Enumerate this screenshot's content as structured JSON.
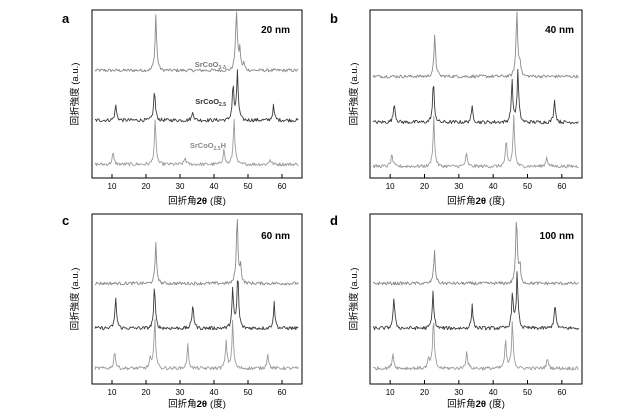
{
  "figure": {
    "background": "#ffffff",
    "series_colors": {
      "SrCoO3-δ": "#8a8a8a",
      "SrCoO2.5": "#3c3c3c",
      "SrCoO2.5H": "#9b9b9b"
    }
  },
  "chart_data": [
    {
      "type": "line",
      "panel": "a",
      "thickness_label": "20 nm",
      "xlabel_prefix": "回折角",
      "xlabel_symbol": "2θ",
      "xlabel_suffix": "(度)",
      "ylabel": "回折強度 (a.u.)",
      "xlim": [
        5,
        65
      ],
      "xticks": [
        10,
        20,
        30,
        40,
        50,
        60
      ],
      "tick_labels": [
        "10",
        "20",
        "30",
        "40",
        "50",
        "60"
      ],
      "stacked": true,
      "grid": false,
      "series": [
        {
          "name": "SrCoO3-δ",
          "label_main": "SrCoO",
          "label_sub": "3-δ",
          "label_tail": "",
          "color": "#8a8a8a",
          "peaks": [
            {
              "x": 22.9,
              "h": 0.82
            },
            {
              "x": 46.6,
              "h": 1.0
            },
            {
              "x": 47.6,
              "h": 0.28
            },
            {
              "x": 48.8,
              "h": 0.1
            }
          ]
        },
        {
          "name": "SrCoO2.5",
          "label_main": "SrCoO",
          "label_sub": "2.5",
          "label_tail": "",
          "color": "#3c3c3c",
          "peaks": [
            {
              "x": 11.1,
              "h": 0.3
            },
            {
              "x": 22.5,
              "h": 0.6
            },
            {
              "x": 33.8,
              "h": 0.18
            },
            {
              "x": 45.6,
              "h": 0.7
            },
            {
              "x": 46.9,
              "h": 0.95
            },
            {
              "x": 57.5,
              "h": 0.28
            }
          ]
        },
        {
          "name": "SrCoO2.5H",
          "label_main": "SrCoO",
          "label_sub": "2.5",
          "label_tail": "H",
          "color": "#9b9b9b",
          "peaks": [
            {
              "x": 10.3,
              "h": 0.25
            },
            {
              "x": 22.7,
              "h": 0.95
            },
            {
              "x": 31.5,
              "h": 0.15
            },
            {
              "x": 42.9,
              "h": 0.35
            },
            {
              "x": 45.9,
              "h": 1.0
            },
            {
              "x": 56.5,
              "h": 0.12
            }
          ]
        }
      ]
    },
    {
      "type": "line",
      "panel": "b",
      "thickness_label": "40 nm",
      "xlabel_prefix": "回折角",
      "xlabel_symbol": "2θ",
      "xlabel_suffix": "(度)",
      "ylabel": "回折強度 (a.u.)",
      "xlim": [
        5,
        65
      ],
      "xticks": [
        10,
        20,
        30,
        40,
        50,
        60
      ],
      "tick_labels": [
        "10",
        "20",
        "30",
        "40",
        "50",
        "60"
      ],
      "stacked": true,
      "grid": false,
      "series": [
        {
          "name": "SrCoO3-δ",
          "color": "#8a8a8a",
          "peaks": [
            {
              "x": 23.0,
              "h": 0.62
            },
            {
              "x": 46.9,
              "h": 1.0
            },
            {
              "x": 47.8,
              "h": 0.2
            }
          ]
        },
        {
          "name": "SrCoO2.5",
          "color": "#3c3c3c",
          "peaks": [
            {
              "x": 11.2,
              "h": 0.4
            },
            {
              "x": 22.6,
              "h": 0.8
            },
            {
              "x": 33.9,
              "h": 0.3
            },
            {
              "x": 45.5,
              "h": 0.8
            },
            {
              "x": 47.2,
              "h": 1.0
            },
            {
              "x": 57.9,
              "h": 0.45
            }
          ]
        },
        {
          "name": "SrCoO2.5H",
          "color": "#9b9b9b",
          "peaks": [
            {
              "x": 10.5,
              "h": 0.25
            },
            {
              "x": 22.7,
              "h": 0.95
            },
            {
              "x": 32.2,
              "h": 0.25
            },
            {
              "x": 43.8,
              "h": 0.5
            },
            {
              "x": 46.0,
              "h": 1.0
            },
            {
              "x": 55.6,
              "h": 0.2
            }
          ]
        }
      ]
    },
    {
      "type": "line",
      "panel": "c",
      "thickness_label": "60 nm",
      "xlabel_prefix": "回折角",
      "xlabel_symbol": "2θ",
      "xlabel_suffix": "(度)",
      "ylabel": "回折強度 (a.u.)",
      "xlim": [
        5,
        65
      ],
      "xticks": [
        10,
        20,
        30,
        40,
        50,
        60
      ],
      "tick_labels": [
        "10",
        "20",
        "30",
        "40",
        "50",
        "60"
      ],
      "stacked": true,
      "grid": false,
      "series": [
        {
          "name": "SrCoO3-δ",
          "color": "#8a8a8a",
          "peaks": [
            {
              "x": 22.9,
              "h": 0.58
            },
            {
              "x": 46.8,
              "h": 1.0
            },
            {
              "x": 47.8,
              "h": 0.25
            }
          ]
        },
        {
          "name": "SrCoO2.5",
          "color": "#3c3c3c",
          "peaks": [
            {
              "x": 11.1,
              "h": 0.55
            },
            {
              "x": 22.5,
              "h": 0.75
            },
            {
              "x": 33.8,
              "h": 0.45
            },
            {
              "x": 45.5,
              "h": 0.7
            },
            {
              "x": 47.0,
              "h": 1.0
            },
            {
              "x": 57.7,
              "h": 0.45
            }
          ]
        },
        {
          "name": "SrCoO2.5H",
          "color": "#9b9b9b",
          "peaks": [
            {
              "x": 10.8,
              "h": 0.35
            },
            {
              "x": 22.6,
              "h": 1.0
            },
            {
              "x": 21.2,
              "h": 0.2
            },
            {
              "x": 32.3,
              "h": 0.45
            },
            {
              "x": 43.6,
              "h": 0.55
            },
            {
              "x": 45.5,
              "h": 0.9
            },
            {
              "x": 55.8,
              "h": 0.3
            }
          ]
        }
      ]
    },
    {
      "type": "line",
      "panel": "d",
      "thickness_label": "100 nm",
      "xlabel_prefix": "回折角",
      "xlabel_symbol": "2θ",
      "xlabel_suffix": "(度)",
      "ylabel": "回折強度 (a.u.)",
      "xlim": [
        5,
        65
      ],
      "xticks": [
        10,
        20,
        30,
        40,
        50,
        60
      ],
      "tick_labels": [
        "10",
        "20",
        "30",
        "40",
        "50",
        "60"
      ],
      "stacked": true,
      "grid": false,
      "series": [
        {
          "name": "SrCoO3-δ",
          "color": "#8a8a8a",
          "peaks": [
            {
              "x": 22.9,
              "h": 0.48
            },
            {
              "x": 46.8,
              "h": 1.0
            },
            {
              "x": 47.8,
              "h": 0.25
            }
          ]
        },
        {
          "name": "SrCoO2.5",
          "color": "#3c3c3c",
          "peaks": [
            {
              "x": 11.1,
              "h": 0.55
            },
            {
              "x": 22.5,
              "h": 0.65
            },
            {
              "x": 33.9,
              "h": 0.4
            },
            {
              "x": 45.6,
              "h": 0.65
            },
            {
              "x": 47.0,
              "h": 1.0
            },
            {
              "x": 58.0,
              "h": 0.45
            }
          ]
        },
        {
          "name": "SrCoO2.5H",
          "color": "#9b9b9b",
          "peaks": [
            {
              "x": 10.8,
              "h": 0.3
            },
            {
              "x": 22.6,
              "h": 1.0
            },
            {
              "x": 21.2,
              "h": 0.2
            },
            {
              "x": 32.3,
              "h": 0.35
            },
            {
              "x": 43.6,
              "h": 0.55
            },
            {
              "x": 45.6,
              "h": 0.95
            },
            {
              "x": 55.8,
              "h": 0.2
            }
          ]
        }
      ]
    }
  ]
}
